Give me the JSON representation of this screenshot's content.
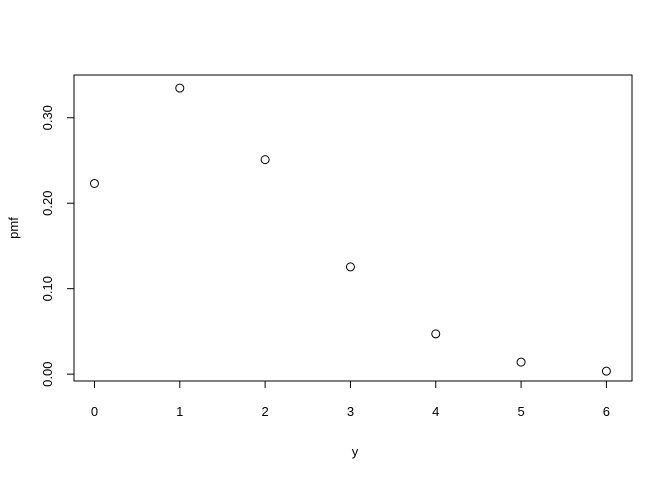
{
  "chart_data": {
    "type": "scatter",
    "title": "",
    "xlabel": "y",
    "ylabel": "pmf",
    "x": [
      0,
      1,
      2,
      3,
      4,
      5,
      6
    ],
    "y": [
      0.2231,
      0.3347,
      0.251,
      0.1255,
      0.0471,
      0.0141,
      0.0035
    ],
    "xlim": [
      -0.24,
      6.3
    ],
    "ylim": [
      -0.008,
      0.35
    ],
    "x_ticks": [
      0,
      1,
      2,
      3,
      4,
      5,
      6
    ],
    "x_tick_labels": [
      "0",
      "1",
      "2",
      "3",
      "4",
      "5",
      "6"
    ],
    "y_ticks": [
      0,
      0.1,
      0.2,
      0.3
    ],
    "y_tick_labels": [
      "0.00",
      "0.10",
      "0.20",
      "0.30"
    ],
    "marker": "open-circle",
    "grid": false,
    "legend": "none",
    "colors": {
      "points": "#000000",
      "axes": "#000000"
    }
  }
}
